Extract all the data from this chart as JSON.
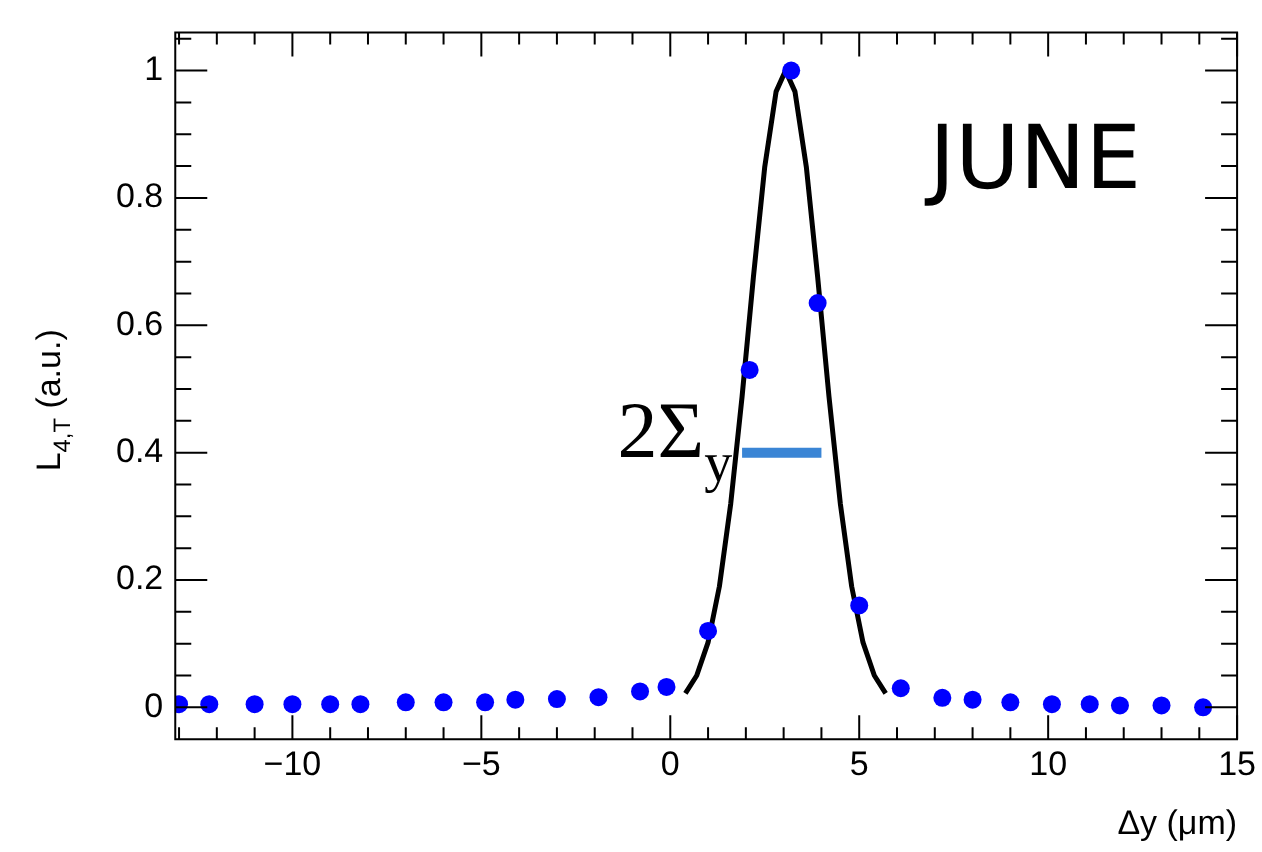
{
  "chart_data": {
    "type": "scatter",
    "xlabel": "Δy (μm)",
    "ylabel": "L$_{4,T}$ (a.u.)",
    "annotations": [
      "JUNE",
      {
        "text": "2Σ$_{y}$",
        "x": 1.85,
        "y": 0.4
      }
    ],
    "xlim": [
      -13.1,
      15
    ],
    "xticks": [
      -10,
      -5,
      0,
      5,
      10,
      15
    ],
    "ylim": [
      -0.05,
      1.06
    ],
    "yticks": [
      0,
      0.2,
      0.4,
      0.6,
      0.8,
      1
    ],
    "grid": false,
    "legend": false,
    "marker": "circle",
    "series": [
      {
        "type": "scatter",
        "color": "#0000ff",
        "x": [
          -13,
          -12.2,
          -11,
          -10,
          -9,
          -8.2,
          -7,
          -6,
          -4.9,
          -4.1,
          -3,
          -1.9,
          -0.8,
          -0.1,
          1.0,
          2.1,
          3.2,
          3.9,
          5.0,
          6.1,
          7.2,
          8.0,
          9.0,
          10.1,
          11.1,
          11.9,
          13.0,
          14.1
        ],
        "values": [
          0.005,
          0.005,
          0.005,
          0.005,
          0.005,
          0.005,
          0.008,
          0.008,
          0.008,
          0.012,
          0.013,
          0.016,
          0.025,
          0.032,
          0.12,
          0.53,
          1.0,
          0.635,
          0.16,
          0.03,
          0.015,
          0.012,
          0.008,
          0.005,
          0.005,
          0.003,
          0.003,
          0.0
        ]
      },
      {
        "type": "line",
        "color": "#000000",
        "marker": "none",
        "x": [
          0.4,
          0.7,
          1.0,
          1.3,
          1.6,
          1.9,
          2.2,
          2.5,
          2.8,
          3.05,
          3.3,
          3.6,
          3.9,
          4.2,
          4.5,
          4.8,
          5.1,
          5.4,
          5.7
        ],
        "values": [
          0.022,
          0.05,
          0.102,
          0.19,
          0.32,
          0.488,
          0.676,
          0.849,
          0.967,
          1.0,
          0.967,
          0.849,
          0.676,
          0.488,
          0.32,
          0.19,
          0.102,
          0.05,
          0.022
        ]
      },
      {
        "type": "line",
        "color": "#3a85d5",
        "marker": "none",
        "x": [
          1.9,
          4.0
        ],
        "values": [
          0.4,
          0.4
        ]
      }
    ]
  }
}
